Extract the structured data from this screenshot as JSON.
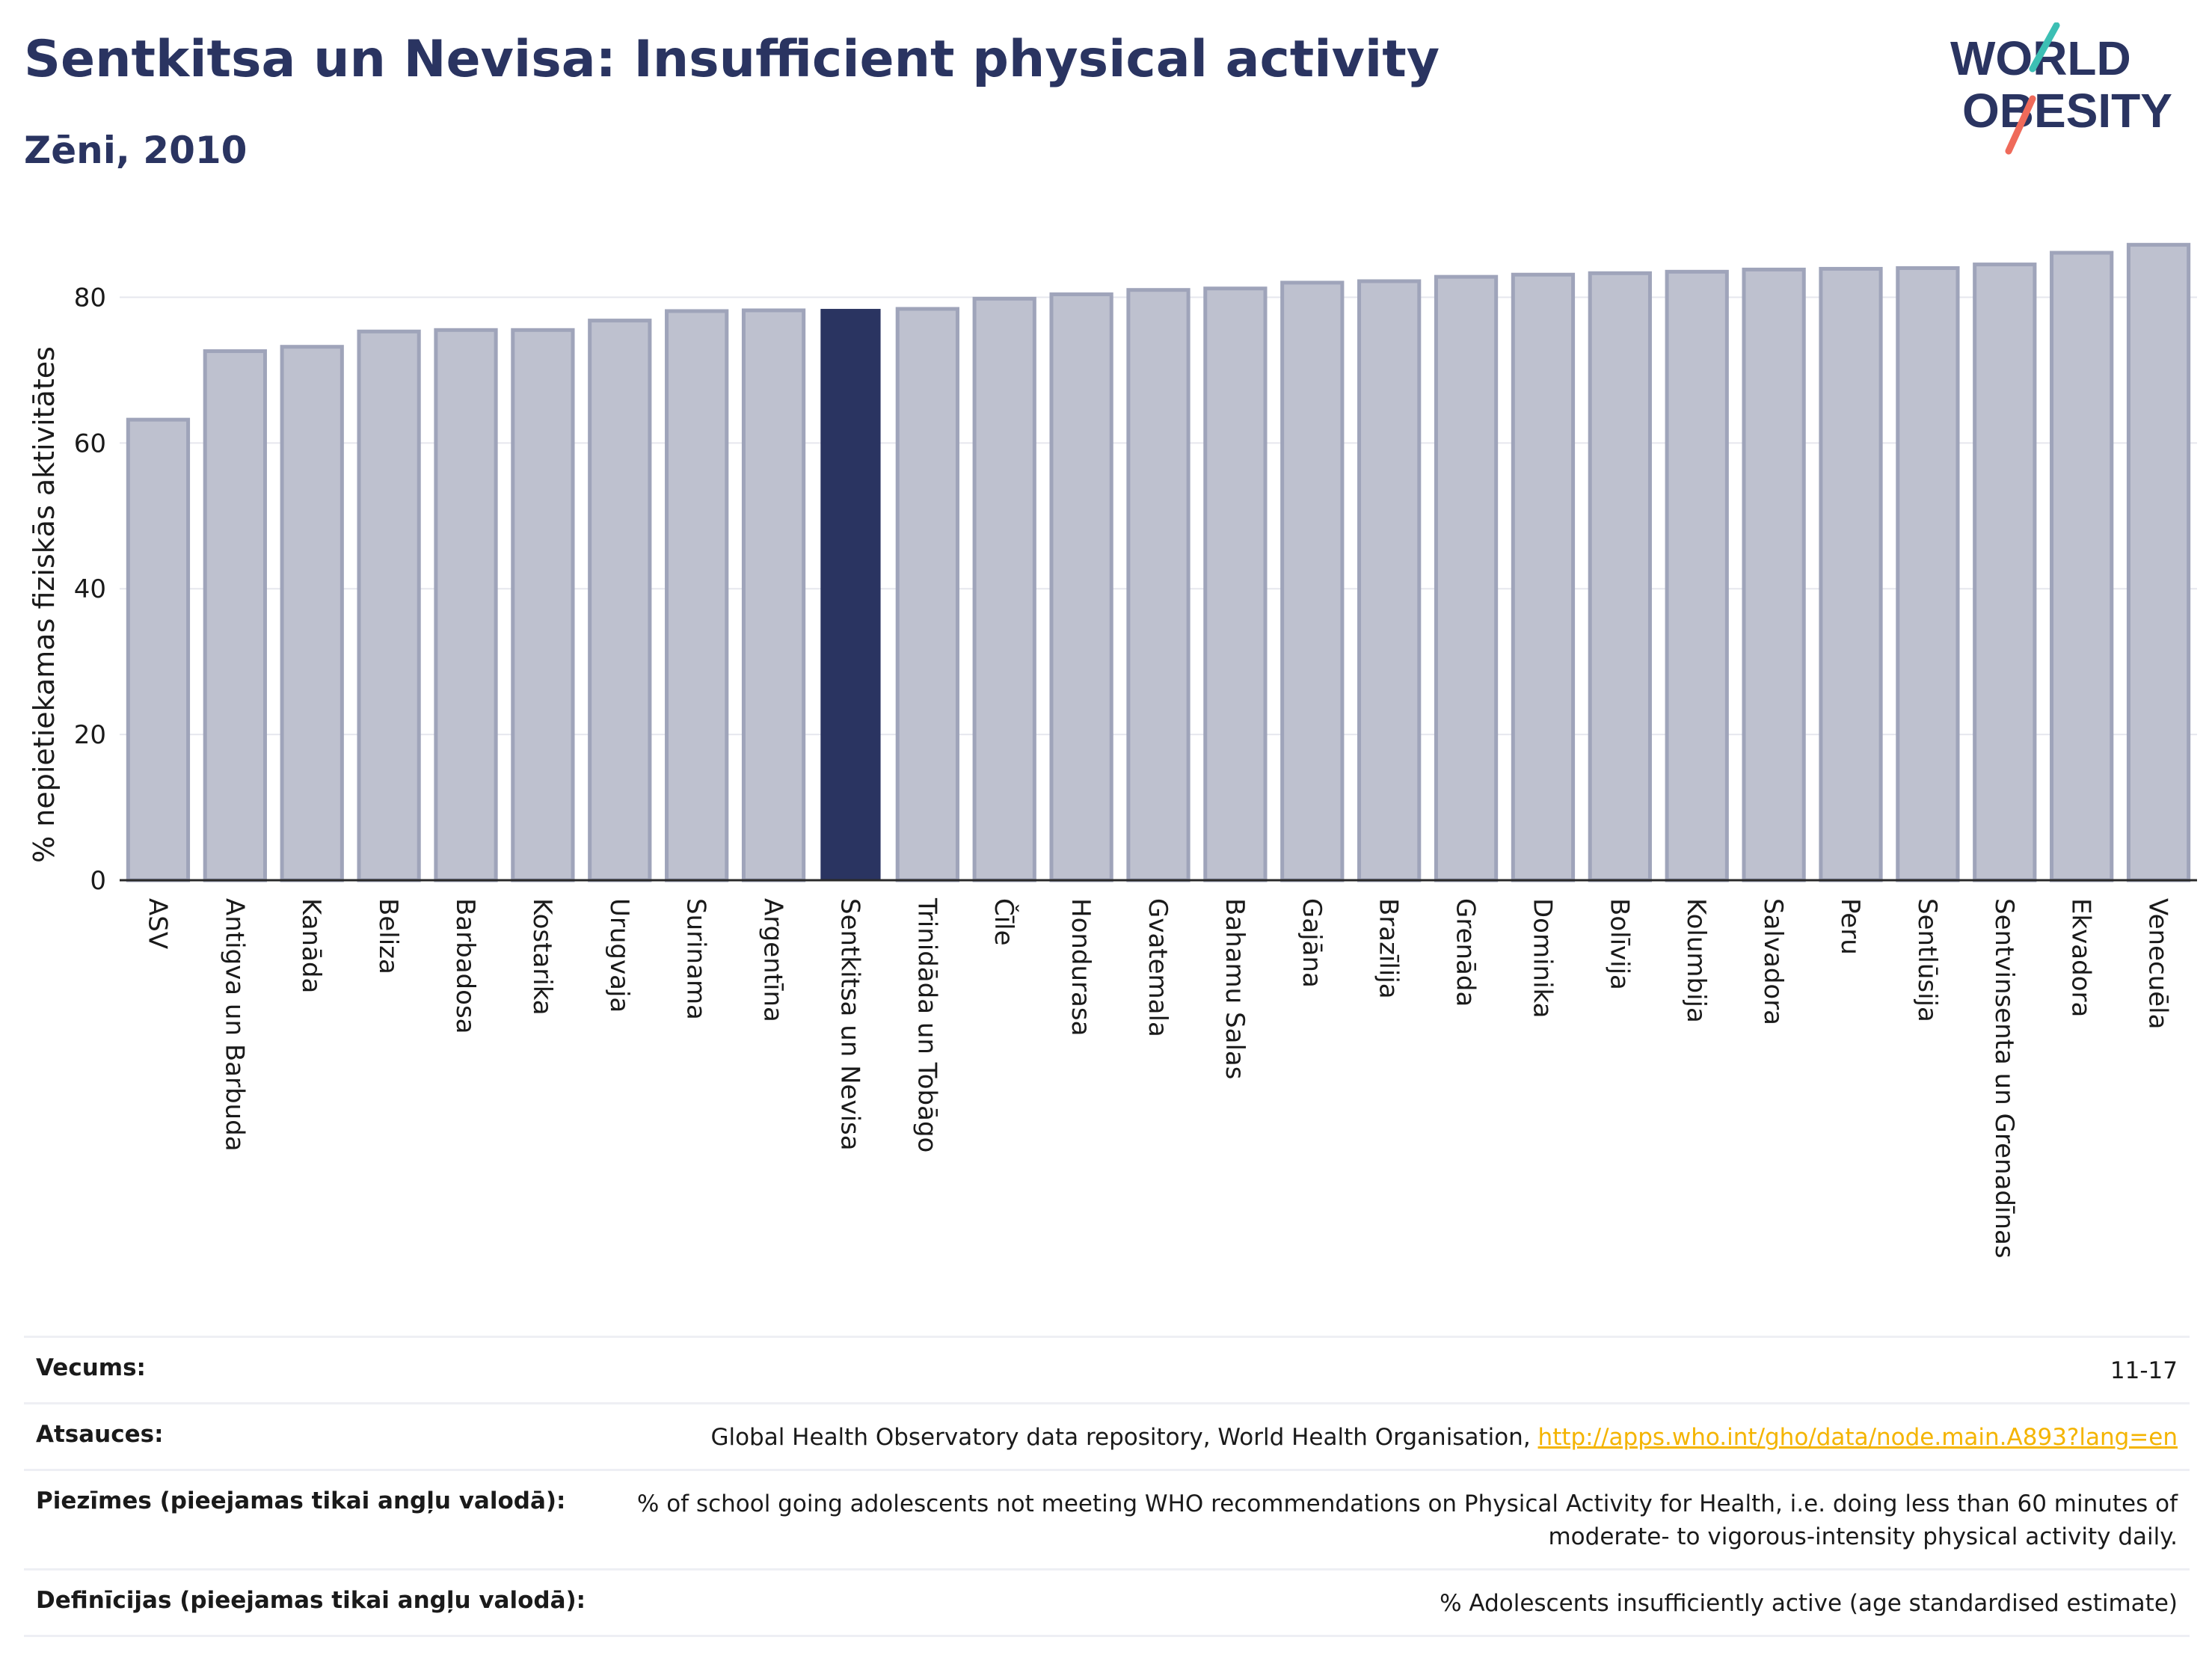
{
  "header": {
    "title": "Sentkitsa un Nevisa: Insufficient physical activity",
    "subtitle": "Zēni, 2010"
  },
  "logo": {
    "line1": "WORLD",
    "line2": "OBESITY",
    "name": "world-obesity-logo"
  },
  "colors": {
    "highlight_bar": "#2a3461",
    "other_bar_fill": "#bec1cf",
    "other_bar_stroke": "#9fa4ba",
    "text": "#2a3461",
    "link": "#f4b400"
  },
  "chart_data": {
    "type": "bar",
    "ylabel": "% nepietiekamas fiziskās aktivitātes",
    "xlabel": "",
    "ylim": [
      0,
      90
    ],
    "yticks": [
      0,
      20,
      40,
      60,
      80
    ],
    "grid": true,
    "highlight": "Sentkitsa un Nevisa",
    "categories": [
      "ASV",
      "Antigva un Barbuda",
      "Kanāda",
      "Beliza",
      "Barbadosa",
      "Kostarika",
      "Urugvaja",
      "Surinama",
      "Argentīna",
      "Sentkitsa un Nevisa",
      "Trinidāda un Tobāgo",
      "Čīle",
      "Hondurasa",
      "Gvatemala",
      "Bahamu Salas",
      "Gajāna",
      "Brazīlija",
      "Grenāda",
      "Dominika",
      "Bolīvija",
      "Kolumbija",
      "Salvadora",
      "Peru",
      "Sentlūsija",
      "Sentvinsenta un Grenadīnas",
      "Ekvadora",
      "Venecuēla"
    ],
    "values": [
      63.2,
      72.6,
      73.2,
      75.3,
      75.5,
      75.5,
      76.8,
      78.1,
      78.2,
      78.4,
      78.4,
      79.8,
      80.4,
      81.0,
      81.2,
      82.0,
      82.2,
      82.8,
      83.1,
      83.3,
      83.5,
      83.8,
      83.9,
      84.0,
      84.5,
      86.1,
      87.2
    ]
  },
  "info": {
    "rows": [
      {
        "label": "Vecums:",
        "value": "11-17"
      },
      {
        "label": "Atsauces:",
        "value": "Global Health Observatory data repository, World Health Organisation, ",
        "link": "http://apps.who.int/gho/data/node.main.A893?lang=en"
      },
      {
        "label": "Piezīmes (pieejamas tikai angļu valodā):",
        "value": "% of school going adolescents not meeting WHO recommendations on Physical Activity for Health, i.e. doing less than 60 minutes of moderate- to vigorous-intensity physical activity daily."
      },
      {
        "label": "Definīcijas (pieejamas tikai angļu valodā):",
        "value": "% Adolescents insufficiently active (age standardised estimate)"
      }
    ]
  }
}
